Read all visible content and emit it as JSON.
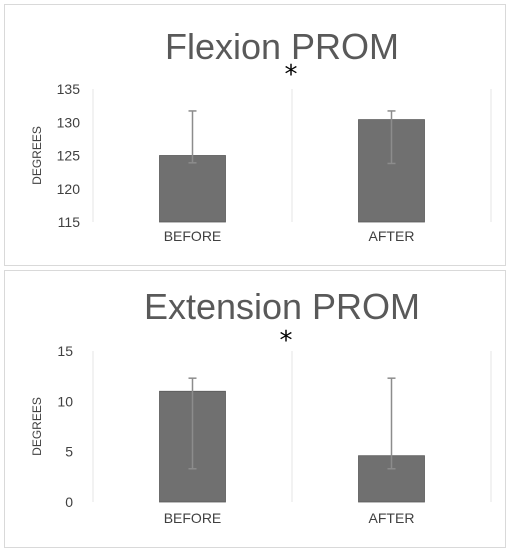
{
  "chart_data": [
    {
      "type": "bar",
      "title": "Flexion PROM",
      "ylabel": "DEGREES",
      "xlabel": "",
      "categories": [
        "BEFORE",
        "AFTER"
      ],
      "values": [
        125,
        130.4
      ],
      "error_low": [
        123.9,
        123.8
      ],
      "error_high": [
        131.7,
        131.7
      ],
      "ylim": [
        115,
        135
      ],
      "yticks": [
        115,
        120,
        125,
        130,
        135
      ],
      "significance": "*",
      "bar_color": "#707070",
      "error_color": "#8c8c8c",
      "grid": "vertical category lines only",
      "legend": "none"
    },
    {
      "type": "bar",
      "title": "Extension PROM",
      "ylabel": "DEGREES",
      "xlabel": "",
      "categories": [
        "BEFORE",
        "AFTER"
      ],
      "values": [
        11,
        4.6
      ],
      "error_low": [
        3.3,
        3.3
      ],
      "error_high": [
        12.3,
        12.3
      ],
      "ylim": [
        0,
        15
      ],
      "yticks": [
        0,
        5,
        10,
        15
      ],
      "significance": "*",
      "bar_color": "#707070",
      "error_color": "#8c8c8c",
      "grid": "vertical category lines only",
      "legend": "none"
    }
  ]
}
